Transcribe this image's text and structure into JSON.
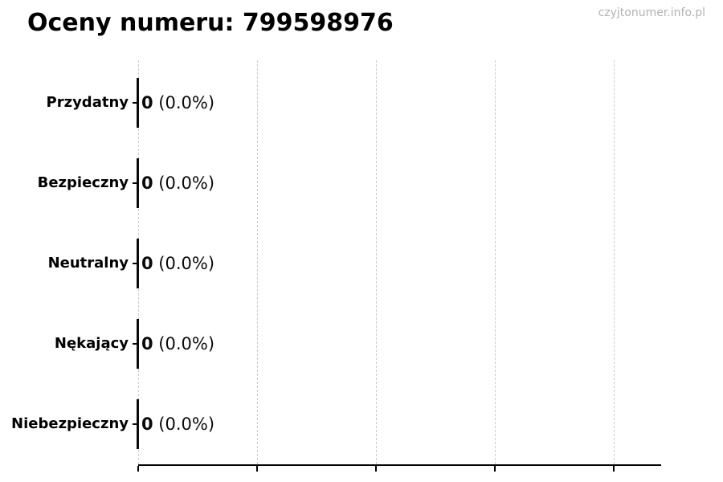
{
  "page": {
    "watermark": "czyjtonumer.info.pl"
  },
  "chart_data": {
    "type": "bar",
    "orientation": "horizontal",
    "title": "Oceny numeru: 799598976",
    "categories": [
      "Przydatny",
      "Bezpieczny",
      "Neutralny",
      "Nękający",
      "Niebezpieczny"
    ],
    "values": [
      0,
      0,
      0,
      0,
      0
    ],
    "value_labels": [
      "0 (0.0%)",
      "0 (0.0%)",
      "0 (0.0%)",
      "0 (0.0%)",
      "0 (0.0%)"
    ],
    "bar_labels": [
      {
        "count": "0",
        "rest": " (0.0%)"
      },
      {
        "count": "0",
        "rest": " (0.0%)"
      },
      {
        "count": "0",
        "rest": " (0.0%)"
      },
      {
        "count": "0",
        "rest": " (0.0%)"
      },
      {
        "count": "0",
        "rest": " (0.0%)"
      }
    ],
    "xlabel": "",
    "ylabel": "",
    "x_axis": {
      "tick_count": 5,
      "tick_labels_visible": false
    },
    "grid": "vertical-dashed",
    "legend": null,
    "colors": {
      "bar": "#0a0a0a",
      "grid": "#cccccc",
      "axis": "#000000",
      "text": "#000000",
      "watermark": "#b3b3b3",
      "background": "#ffffff"
    }
  }
}
